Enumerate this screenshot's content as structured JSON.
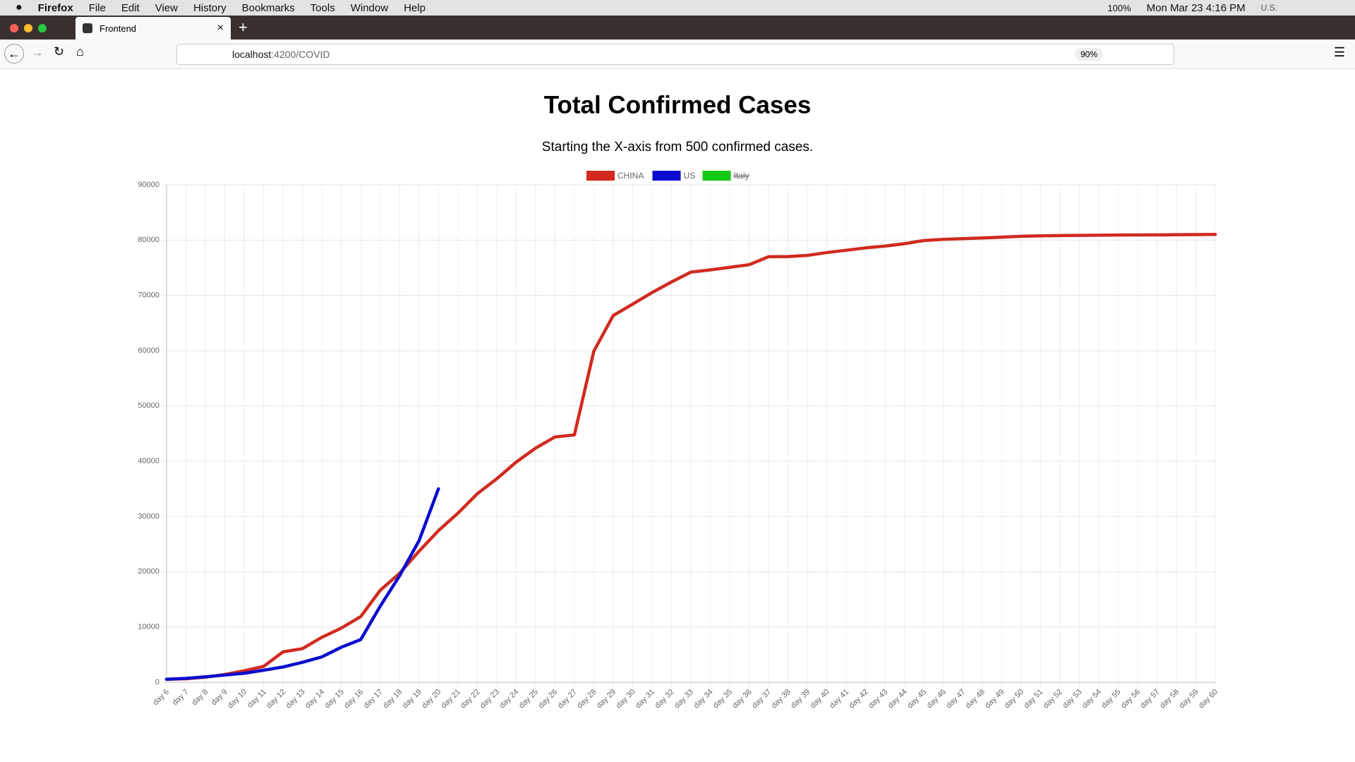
{
  "menubar": {
    "app": "Firefox",
    "menus": [
      "File",
      "Edit",
      "View",
      "History",
      "Bookmarks",
      "Tools",
      "Window",
      "Help"
    ],
    "battery": "100%",
    "clock": "Mon Mar 23  4:16 PM",
    "locale": "U.S."
  },
  "tab": {
    "title": "Frontend"
  },
  "urlbar": {
    "host": "localhost",
    "path": ":4200/COVID",
    "zoom": "90%"
  },
  "chart_data": {
    "type": "line",
    "title": "Total Confirmed Cases",
    "subtitle": "Starting the X-axis from 500 confirmed cases.",
    "categories": [
      "day 6",
      "day 7",
      "day 8",
      "day 9",
      "day 10",
      "day 11",
      "day 12",
      "day 13",
      "day 14",
      "day 15",
      "day 16",
      "day 17",
      "day 18",
      "day 19",
      "day 20",
      "day 21",
      "day 22",
      "day 23",
      "day 24",
      "day 25",
      "day 26",
      "day 27",
      "day 28",
      "day 29",
      "day 30",
      "day 31",
      "day 32",
      "day 33",
      "day 34",
      "day 35",
      "day 36",
      "day 37",
      "day 38",
      "day 39",
      "day 40",
      "day 41",
      "day 42",
      "day 43",
      "day 44",
      "day 45",
      "day 46",
      "day 47",
      "day 48",
      "day 49",
      "day 50",
      "day 51",
      "day 52",
      "day 53",
      "day 54",
      "day 55",
      "day 56",
      "day 57",
      "day 58",
      "day 59",
      "day 60"
    ],
    "series": [
      {
        "name": "CHINA",
        "color": "#d12a1f",
        "values": [
          548,
          643,
          920,
          1406,
          2075,
          2877,
          5509,
          6087,
          8141,
          9802,
          11891,
          16630,
          19716,
          23707,
          27440,
          30587,
          34110,
          36814,
          39829,
          42354,
          44386,
          44759,
          59895,
          66358,
          68413,
          70513,
          72434,
          74211,
          74619,
          75077,
          75550,
          77001,
          77022,
          77241,
          77754,
          78166,
          78600,
          78928,
          79356,
          79932,
          80136,
          80261,
          80386,
          80537,
          80690,
          80770,
          80823,
          80860,
          80887,
          80921,
          80932,
          80945,
          80977,
          81003,
          81033
        ]
      },
      {
        "name": "US",
        "color": "#0b0bcf",
        "values": [
          541,
          704,
          994,
          1301,
          1630,
          2183,
          2770,
          3613,
          4596,
          6344,
          7731,
          13749,
          19273,
          25600,
          35000,
          null,
          null,
          null,
          null,
          null,
          null,
          null,
          null,
          null,
          null,
          null,
          null,
          null,
          null,
          null,
          null,
          null,
          null,
          null,
          null,
          null,
          null,
          null,
          null,
          null,
          null,
          null,
          null,
          null,
          null,
          null,
          null,
          null,
          null,
          null,
          null,
          null,
          null,
          null,
          null
        ]
      },
      {
        "name": "Italy",
        "color": "#14c914",
        "hidden": true,
        "values": [
          null,
          null,
          null,
          null,
          null,
          null,
          null,
          null,
          null,
          null,
          null,
          null,
          null,
          null,
          null,
          null,
          null,
          null,
          null,
          null,
          null,
          null,
          null,
          null,
          null,
          null,
          null,
          null,
          null,
          null,
          null,
          null,
          null,
          null,
          null,
          null,
          null,
          null,
          null,
          null,
          null,
          null,
          null,
          null,
          null,
          null,
          null,
          null,
          null,
          null,
          null,
          null,
          null,
          null,
          null
        ]
      }
    ],
    "ylim": [
      0,
      90000
    ],
    "yticks": [
      0,
      10000,
      20000,
      30000,
      40000,
      50000,
      60000,
      70000,
      80000,
      90000
    ],
    "grid": true,
    "legend": "top"
  }
}
